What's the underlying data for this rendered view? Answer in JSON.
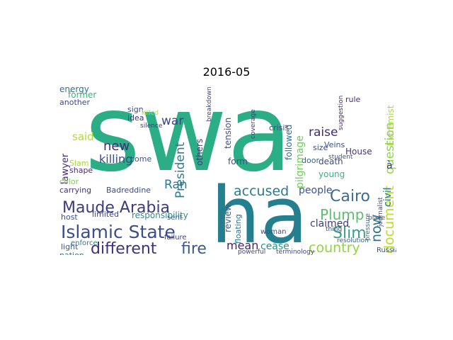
{
  "title": "2016-05",
  "words": [
    {
      "text": "swa",
      "color": "#2BAE85"
    },
    {
      "text": "ha",
      "color": "#24808E"
    },
    {
      "text": "Islamic State",
      "color": "#3C4E8A"
    },
    {
      "text": "Maude Arabia",
      "color": "#3D3A7E"
    },
    {
      "text": "different",
      "color": "#40317C"
    },
    {
      "text": "fire",
      "color": "#3A5A8C"
    },
    {
      "text": "Cairo",
      "color": "#3F6C8C"
    },
    {
      "text": "Plump",
      "color": "#5ABF6A"
    },
    {
      "text": "accused",
      "color": "#2D7A8E"
    },
    {
      "text": "country",
      "color": "#8FD441"
    },
    {
      "text": "Slim",
      "color": "#3E9C89"
    },
    {
      "text": "document",
      "color": "#B8DE2A"
    },
    {
      "text": "now",
      "color": "#2A6F8E"
    },
    {
      "text": "question",
      "color": "#8ED645"
    },
    {
      "text": "President",
      "color": "#2D7B8E"
    },
    {
      "text": "mean",
      "color": "#46206E"
    },
    {
      "text": "cease",
      "color": "#1F9A8A"
    },
    {
      "text": "raise",
      "color": "#3E2D75"
    },
    {
      "text": "people",
      "color": "#3A538B"
    },
    {
      "text": "new",
      "color": "#462A77"
    },
    {
      "text": "said",
      "color": "#B2DD2D"
    },
    {
      "text": "killing",
      "color": "#3C4A89"
    },
    {
      "text": "Ran",
      "color": "#2A7B8E"
    },
    {
      "text": "war",
      "color": "#404485"
    },
    {
      "text": "claimed",
      "color": "#3B3F86"
    },
    {
      "text": "à",
      "color": "#3B3A80"
    },
    {
      "text": "civil",
      "color": "#2D7A8E"
    },
    {
      "text": "responsibility",
      "color": "#2E8C8C"
    },
    {
      "text": "carrying",
      "color": "#44357D"
    },
    {
      "text": "Badreddine",
      "color": "#3E4A89"
    },
    {
      "text": "limited",
      "color": "#3F438A"
    },
    {
      "text": "lawyer",
      "color": "#4B2A79"
    },
    {
      "text": "death",
      "color": "#3F4788"
    },
    {
      "text": "young",
      "color": "#35B778"
    },
    {
      "text": "Extremist",
      "color": "#A6DB35"
    },
    {
      "text": "House",
      "color": "#46327E"
    },
    {
      "text": "pilgrimage",
      "color": "#6ECE58"
    },
    {
      "text": "followed",
      "color": "#2F6C8E"
    },
    {
      "text": "tension",
      "color": "#3E4C8A"
    },
    {
      "text": "form",
      "color": "#3B518B"
    },
    {
      "text": "review",
      "color": "#355F8D"
    },
    {
      "text": "energy",
      "color": "#2C728E"
    },
    {
      "text": "former",
      "color": "#35B779"
    },
    {
      "text": "another",
      "color": "#3F4788"
    },
    {
      "text": "sign",
      "color": "#3E4A89"
    },
    {
      "text": "idea",
      "color": "#46337F"
    },
    {
      "text": "host",
      "color": "#3B528B"
    },
    {
      "text": "light",
      "color": "#38598C"
    },
    {
      "text": "nation",
      "color": "#2C718E"
    },
    {
      "text": "crisis",
      "color": "#3E4A89"
    },
    {
      "text": "door",
      "color": "#33638D"
    },
    {
      "text": "size",
      "color": "#3F4C8A"
    },
    {
      "text": "others",
      "color": "#46317E"
    },
    {
      "text": "come",
      "color": "#3B528B"
    },
    {
      "text": "Slam",
      "color": "#A2DA37"
    },
    {
      "text": "shape",
      "color": "#4B2C7A"
    },
    {
      "text": "color",
      "color": "#7AD151"
    },
    {
      "text": "Veins",
      "color": "#3C508B"
    },
    {
      "text": "rule",
      "color": "#46307E"
    },
    {
      "text": "woman",
      "color": "#3E4A89"
    },
    {
      "text": "floating",
      "color": "#2A778E"
    },
    {
      "text": "failure",
      "color": "#433E85"
    },
    {
      "text": "sent",
      "color": "#31668E"
    },
    {
      "text": "enforce",
      "color": "#27808E"
    },
    {
      "text": "Russian",
      "color": "#3B528B"
    },
    {
      "text": "resolution",
      "color": "#33638D"
    },
    {
      "text": "powerful",
      "color": "#404387"
    },
    {
      "text": "terminology",
      "color": "#3E4989"
    },
    {
      "text": "coverage",
      "color": "#46337F"
    },
    {
      "text": "pressure",
      "color": "#2C728E"
    },
    {
      "text": "journalist",
      "color": "#414487"
    },
    {
      "text": "thing",
      "color": "#3F4788"
    },
    {
      "text": "suggestion",
      "color": "#482475"
    },
    {
      "text": "student",
      "color": "#3B518B"
    },
    {
      "text": "breakdown",
      "color": "#404688"
    },
    {
      "text": "silence",
      "color": "#46327E"
    },
    {
      "text": "apparently",
      "color": "#2C728E"
    },
    {
      "text": "killed",
      "color": "#B5DE2B"
    },
    {
      "text": "place",
      "color": "#3B528B"
    }
  ]
}
